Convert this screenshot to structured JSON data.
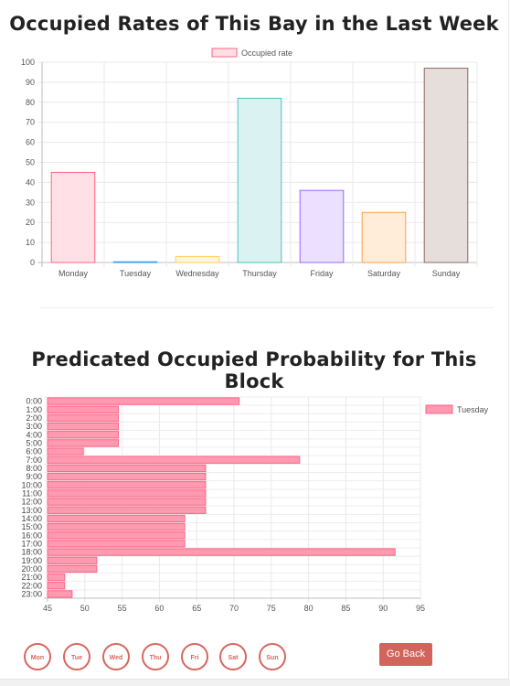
{
  "chart_data": [
    {
      "type": "bar",
      "title": "Occupied Rates of This Bay in the Last Week",
      "categories": [
        "Monday",
        "Tuesday",
        "Wednesday",
        "Thursday",
        "Friday",
        "Saturday",
        "Sunday"
      ],
      "series": [
        {
          "name": "Occupied rate",
          "values": [
            45,
            0,
            3,
            82,
            36,
            25,
            97
          ]
        }
      ],
      "bar_colors": [
        "#ff6384",
        "#36a2eb",
        "#ffce56",
        "#4bc0c0",
        "#9966ff",
        "#ff9f40",
        "#8c6a5f"
      ],
      "bar_fills": [
        "#ffe0e6",
        "#d7ecfb",
        "#fff5dd",
        "#dbf2f2",
        "#ebe0ff",
        "#ffecd9",
        "#e6dedb"
      ],
      "legend_color": "#ff6384",
      "legend_fill": "#ffe0e6",
      "ylim": [
        0,
        100
      ],
      "yticks": [
        0,
        10,
        20,
        30,
        40,
        50,
        60,
        70,
        80,
        90,
        100
      ],
      "legend": "top",
      "grid": true
    },
    {
      "type": "bar",
      "orientation": "horizontal",
      "title": "Predicated Occupied Probability for This Block",
      "categories": [
        "0:00",
        "1:00",
        "2:00",
        "3:00",
        "4:00",
        "5:00",
        "6:00",
        "7:00",
        "8:00",
        "9:00",
        "10:00",
        "11:00",
        "12:00",
        "13:00",
        "14:00",
        "15:00",
        "16:00",
        "17:00",
        "18:00",
        "19:00",
        "20:00",
        "21:00",
        "22:00",
        "23:00"
      ],
      "series": [
        {
          "name": "Tuesday",
          "values": [
            70.7,
            54.5,
            54.5,
            54.5,
            54.5,
            54.5,
            49.8,
            78.8,
            66.2,
            66.2,
            66.2,
            66.2,
            66.2,
            66.2,
            63.4,
            63.4,
            63.4,
            63.4,
            91.6,
            51.6,
            51.6,
            47.3,
            47.3,
            48.3
          ]
        }
      ],
      "bar_color": "#ff6384",
      "bar_fill": "#ff9ab0",
      "xlim": [
        45,
        95
      ],
      "xticks": [
        45,
        50,
        55,
        60,
        65,
        70,
        75,
        80,
        85,
        90,
        95
      ],
      "legend": "right",
      "grid": true
    }
  ],
  "day_buttons": [
    "Mon",
    "Tue",
    "Wed",
    "Thu",
    "Fri",
    "Sat",
    "Sun"
  ],
  "go_back_label": "Go Back"
}
